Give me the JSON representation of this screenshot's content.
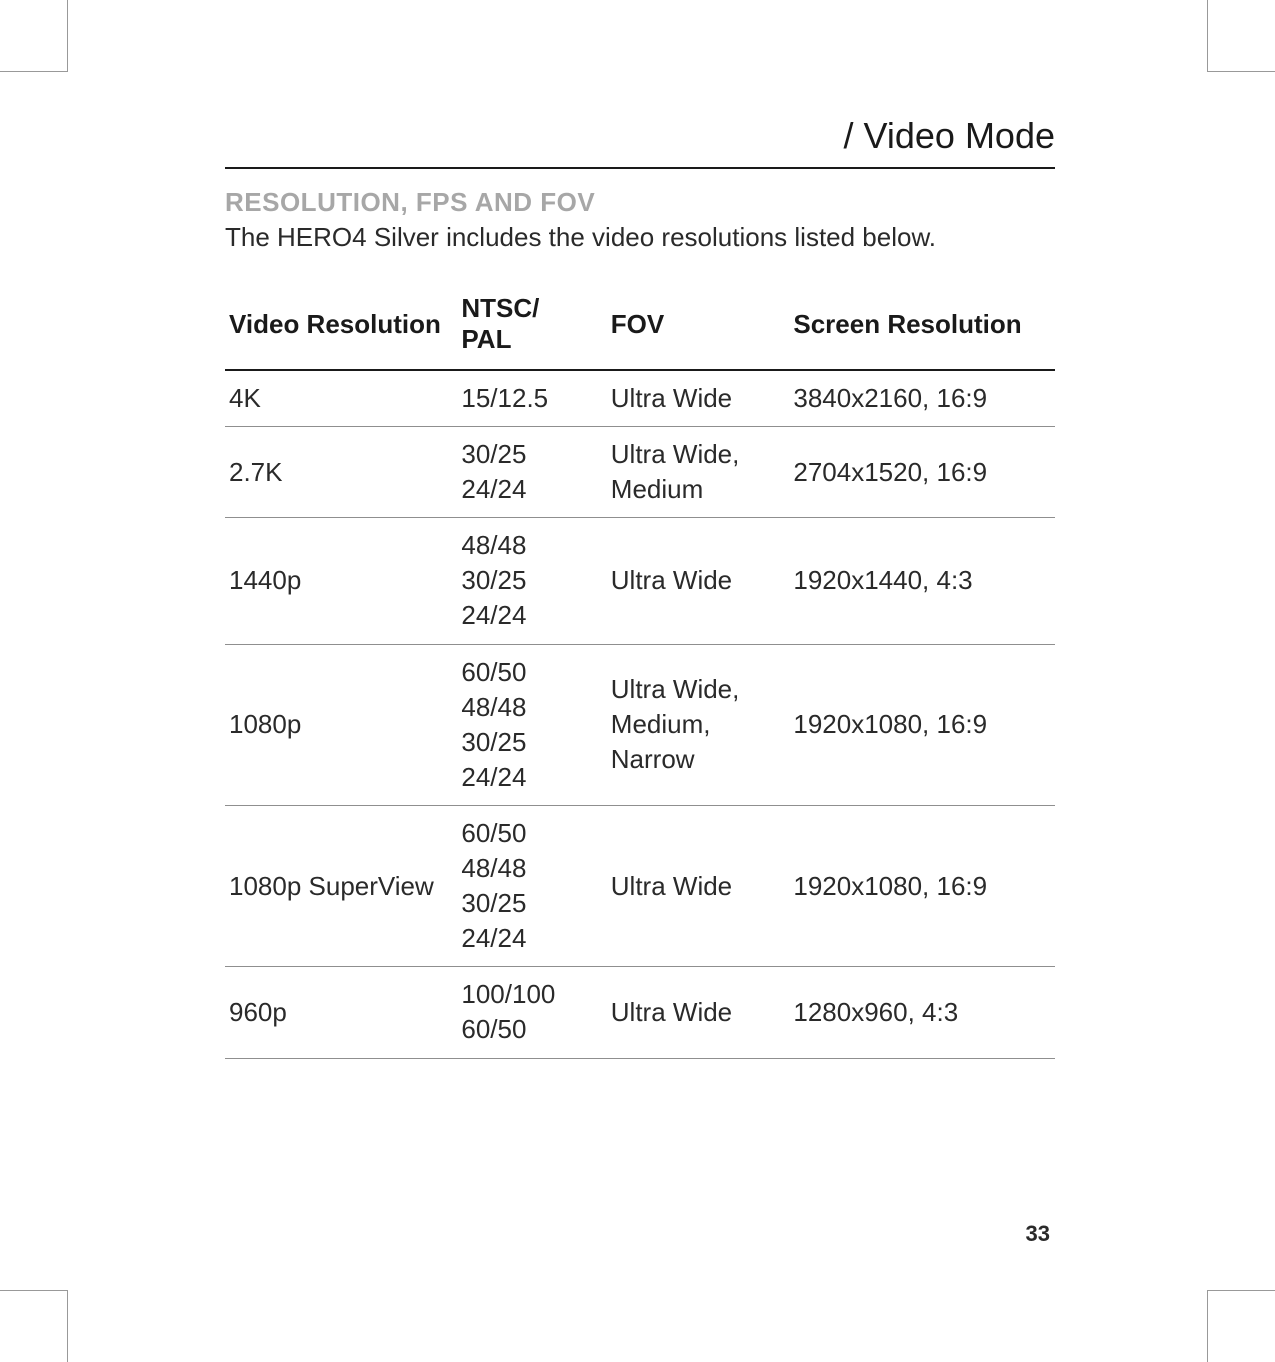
{
  "section_title": "/ Video Mode",
  "subheading": "RESOLUTION, FPS AND FOV",
  "intro": "The HERO4 Silver includes the video resolutions listed below.",
  "table": {
    "columns": [
      "Video Resolution",
      "NTSC/\nPAL",
      "FOV",
      "Screen Resolution"
    ],
    "rows": [
      {
        "res": "4K",
        "ntsc": "15/12.5",
        "fov": "Ultra Wide",
        "screen": "3840x2160, 16:9"
      },
      {
        "res": "2.7K",
        "ntsc": "30/25\n24/24",
        "fov": "Ultra Wide, Medium",
        "screen": "2704x1520, 16:9"
      },
      {
        "res": "1440p",
        "ntsc": "48/48\n30/25\n24/24",
        "fov": "Ultra Wide",
        "screen": "1920x1440, 4:3"
      },
      {
        "res": "1080p",
        "ntsc": "60/50\n48/48\n30/25\n24/24",
        "fov": "Ultra Wide, Medium, Narrow",
        "screen": "1920x1080, 16:9"
      },
      {
        "res": "1080p SuperView",
        "ntsc": "60/50\n48/48\n30/25\n24/24",
        "fov": "Ultra Wide",
        "screen": "1920x1080, 16:9"
      },
      {
        "res": "960p",
        "ntsc": "100/100\n60/50",
        "fov": "Ultra Wide",
        "screen": "1280x960, 4:3"
      }
    ]
  },
  "page_number": "33",
  "colors": {
    "text": "#2a2a2a",
    "heading": "#1a1a1a",
    "subheading_gray": "#a7a7a7",
    "rule_strong": "#1a1a1a",
    "rule_light": "#8f8f8f",
    "crop": "#999999",
    "background": "#ffffff"
  },
  "typography": {
    "section_title_pt": 36,
    "subheading_pt": 26,
    "body_pt": 26,
    "page_num_pt": 22
  }
}
